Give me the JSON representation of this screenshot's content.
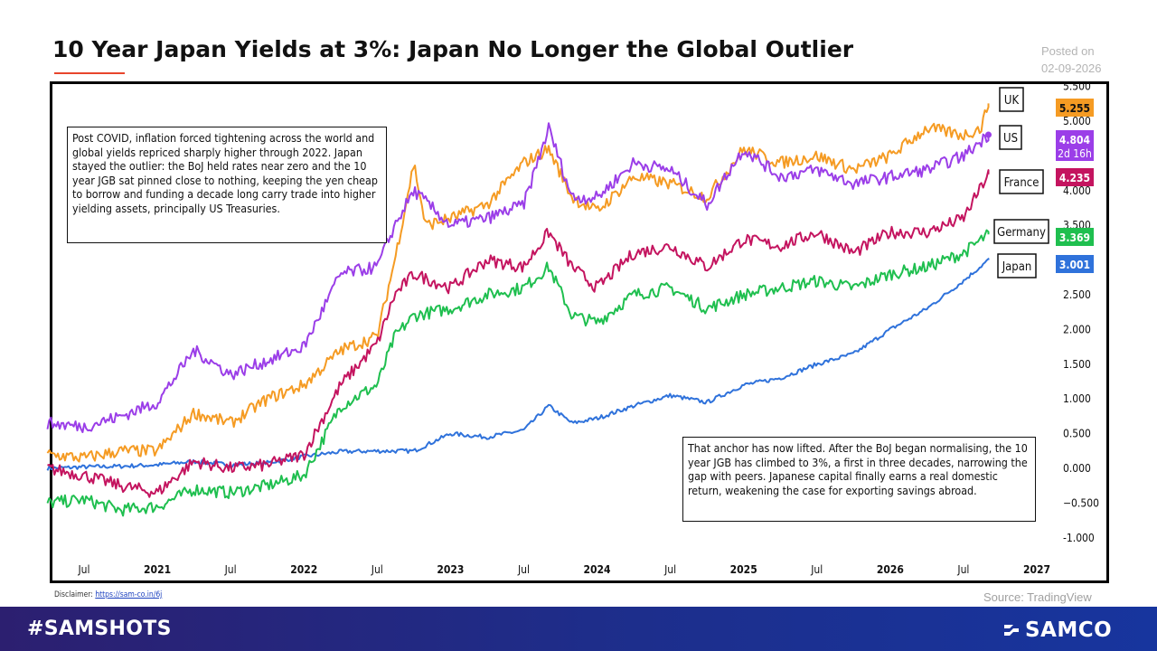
{
  "header": {
    "title": "10 Year Japan Yields at 3%: Japan No Longer the Global Outlier",
    "posted_label": "Posted on",
    "posted_date": "02-09-2026"
  },
  "annotations": {
    "left": "Post COVID, inflation forced tightening across the world and global yields repriced sharply higher through 2022. Japan stayed the outlier: the BoJ held rates near zero and the 10 year JGB sat pinned close to nothing, keeping the yen cheap to borrow and funding a decade long carry trade into higher yielding assets, principally US Treasuries.",
    "right": "That anchor has now lifted. After the BoJ began normalising, the 10 year JGB has climbed to 3%, a first in three decades, narrowing the gap with peers. Japanese capital finally earns a real domestic return, weakening the case for exporting savings abroad."
  },
  "footer": {
    "disclaimer_label": "Disclaimer:",
    "disclaimer_link": "https://sam-co.in/6j",
    "source": "Source: TradingView",
    "hashtag": "#SAMSHOTS",
    "brand": "SAMCO"
  },
  "colors": {
    "uk": "#f59b23",
    "us": "#9b3ee8",
    "france": "#c4145f",
    "germany": "#1fbf4f",
    "japan": "#2f72db",
    "title_accent": "#e8452c",
    "footer_bg": "#1d2e8c"
  },
  "chart_data": {
    "type": "line",
    "x_unit": "year",
    "xlim": [
      2020.25,
      2027.1
    ],
    "ylim": [
      -1.0,
      5.5
    ],
    "y_ticks": [
      "-1.000",
      "−0.500",
      "0.000",
      "0.500",
      "1.000",
      "1.500",
      "2.000",
      "2.500",
      "3.000",
      "3.500",
      "4.000",
      "5.000",
      "5.500"
    ],
    "y_tick_values": [
      -1.0,
      -0.5,
      0.0,
      0.5,
      1.0,
      1.5,
      2.0,
      2.5,
      3.0,
      3.5,
      4.0,
      5.0,
      5.5
    ],
    "x_ticks": [
      {
        "label": "Jul",
        "x": 2020.5,
        "bold": false
      },
      {
        "label": "2021",
        "x": 2021.0,
        "bold": true
      },
      {
        "label": "Jul",
        "x": 2021.5,
        "bold": false
      },
      {
        "label": "2022",
        "x": 2022.0,
        "bold": true
      },
      {
        "label": "Jul",
        "x": 2022.5,
        "bold": false
      },
      {
        "label": "2023",
        "x": 2023.0,
        "bold": true
      },
      {
        "label": "Jul",
        "x": 2023.5,
        "bold": false
      },
      {
        "label": "2024",
        "x": 2024.0,
        "bold": true
      },
      {
        "label": "Jul",
        "x": 2024.5,
        "bold": false
      },
      {
        "label": "2025",
        "x": 2025.0,
        "bold": true
      },
      {
        "label": "Jul",
        "x": 2025.5,
        "bold": false
      },
      {
        "label": "2026",
        "x": 2026.0,
        "bold": true
      },
      {
        "label": "Jul",
        "x": 2026.5,
        "bold": false
      },
      {
        "label": "2027",
        "x": 2027.0,
        "bold": true
      }
    ],
    "series": [
      {
        "name": "UK",
        "color": "#f59b23",
        "last_value": "5.255",
        "extra": "",
        "x": [
          2020.25,
          2020.5,
          2020.75,
          2021.0,
          2021.25,
          2021.5,
          2021.75,
          2022.0,
          2022.25,
          2022.5,
          2022.62,
          2022.75,
          2022.83,
          2023.0,
          2023.25,
          2023.5,
          2023.67,
          2023.83,
          2024.0,
          2024.25,
          2024.5,
          2024.75,
          2025.0,
          2025.25,
          2025.5,
          2025.75,
          2026.0,
          2026.25,
          2026.5,
          2026.62,
          2026.67
        ],
        "values": [
          0.2,
          0.15,
          0.25,
          0.25,
          0.8,
          0.65,
          1.0,
          1.2,
          1.7,
          1.9,
          3.0,
          4.4,
          3.5,
          3.6,
          3.8,
          4.4,
          4.6,
          3.9,
          3.7,
          4.2,
          4.1,
          3.9,
          4.6,
          4.4,
          4.5,
          4.3,
          4.5,
          4.9,
          4.8,
          4.9,
          5.255
        ]
      },
      {
        "name": "US",
        "color": "#9b3ee8",
        "last_value": "4.804",
        "extra": "2d 16h",
        "x": [
          2020.25,
          2020.5,
          2020.75,
          2021.0,
          2021.25,
          2021.5,
          2021.75,
          2022.0,
          2022.25,
          2022.5,
          2022.62,
          2022.75,
          2023.0,
          2023.25,
          2023.5,
          2023.67,
          2023.83,
          2024.0,
          2024.25,
          2024.5,
          2024.75,
          2025.0,
          2025.25,
          2025.5,
          2025.75,
          2026.0,
          2026.25,
          2026.5,
          2026.67
        ],
        "values": [
          0.65,
          0.6,
          0.75,
          0.95,
          1.7,
          1.35,
          1.55,
          1.75,
          2.8,
          2.9,
          3.5,
          4.0,
          3.5,
          3.6,
          3.8,
          4.9,
          3.9,
          3.9,
          4.4,
          4.3,
          3.8,
          4.6,
          4.2,
          4.3,
          4.1,
          4.2,
          4.3,
          4.5,
          4.804
        ]
      },
      {
        "name": "France",
        "color": "#c4145f",
        "last_value": "4.235",
        "extra": "",
        "x": [
          2020.25,
          2020.5,
          2020.75,
          2021.0,
          2021.25,
          2021.5,
          2021.75,
          2022.0,
          2022.25,
          2022.5,
          2022.62,
          2022.75,
          2023.0,
          2023.25,
          2023.5,
          2023.67,
          2023.83,
          2024.0,
          2024.25,
          2024.5,
          2024.75,
          2025.0,
          2025.25,
          2025.5,
          2025.75,
          2026.0,
          2026.25,
          2026.5,
          2026.67
        ],
        "values": [
          0.0,
          -0.1,
          -0.25,
          -0.35,
          0.1,
          0.0,
          0.05,
          0.2,
          1.2,
          1.8,
          2.5,
          2.8,
          2.6,
          3.0,
          2.9,
          3.4,
          2.9,
          2.6,
          3.1,
          3.2,
          2.9,
          3.3,
          3.2,
          3.4,
          3.1,
          3.4,
          3.4,
          3.6,
          4.235
        ]
      },
      {
        "name": "Germany",
        "color": "#1fbf4f",
        "last_value": "3.369",
        "extra": "",
        "x": [
          2020.25,
          2020.5,
          2020.75,
          2021.0,
          2021.25,
          2021.5,
          2021.75,
          2022.0,
          2022.25,
          2022.5,
          2022.62,
          2022.75,
          2023.0,
          2023.25,
          2023.5,
          2023.67,
          2023.83,
          2024.0,
          2024.25,
          2024.5,
          2024.75,
          2025.0,
          2025.25,
          2025.5,
          2025.75,
          2026.0,
          2026.25,
          2026.5,
          2026.67
        ],
        "values": [
          -0.5,
          -0.45,
          -0.6,
          -0.55,
          -0.3,
          -0.35,
          -0.25,
          -0.1,
          0.9,
          1.2,
          1.9,
          2.2,
          2.3,
          2.5,
          2.6,
          2.9,
          2.2,
          2.1,
          2.5,
          2.6,
          2.3,
          2.5,
          2.6,
          2.7,
          2.6,
          2.8,
          2.9,
          3.1,
          3.369
        ]
      },
      {
        "name": "Japan",
        "color": "#2f72db",
        "last_value": "3.001",
        "extra": "",
        "x": [
          2020.25,
          2020.5,
          2020.75,
          2021.0,
          2021.25,
          2021.5,
          2021.75,
          2022.0,
          2022.25,
          2022.5,
          2022.75,
          2023.0,
          2023.25,
          2023.5,
          2023.67,
          2023.83,
          2024.0,
          2024.25,
          2024.5,
          2024.75,
          2025.0,
          2025.25,
          2025.5,
          2025.75,
          2026.0,
          2026.25,
          2026.5,
          2026.67
        ],
        "values": [
          0.0,
          0.02,
          0.03,
          0.05,
          0.1,
          0.05,
          0.08,
          0.17,
          0.24,
          0.25,
          0.25,
          0.5,
          0.45,
          0.55,
          0.9,
          0.65,
          0.72,
          0.9,
          1.05,
          0.95,
          1.2,
          1.3,
          1.5,
          1.65,
          2.0,
          2.3,
          2.7,
          3.001
        ]
      }
    ]
  }
}
